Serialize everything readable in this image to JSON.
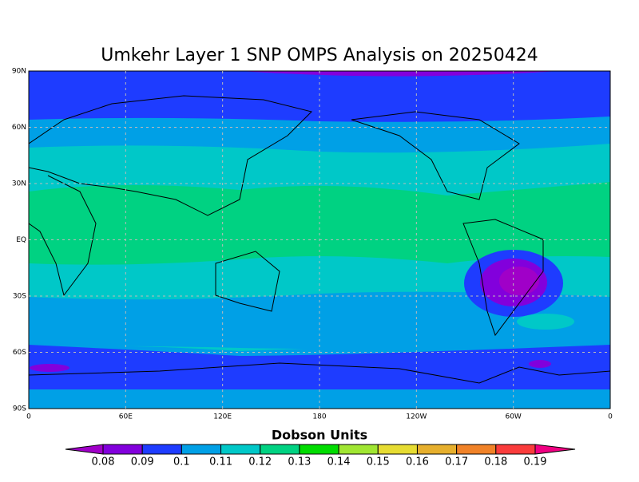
{
  "title": "Umkehr Layer 1 SNP OMPS Analysis on 20250424",
  "map": {
    "x_labels": [
      "0",
      "60E",
      "120E",
      "180",
      "120W",
      "60W",
      "0"
    ],
    "y_labels": [
      "90N",
      "60N",
      "30N",
      "EQ",
      "30S",
      "60S",
      "90S"
    ]
  },
  "colorbar": {
    "title": "Dobson Units",
    "levels": [
      0.08,
      0.09,
      0.1,
      0.11,
      0.12,
      0.13,
      0.14,
      0.15,
      0.16,
      0.17,
      0.18,
      0.19
    ],
    "colors": [
      "#a000c8",
      "#8200dc",
      "#1e3cff",
      "#00a0e6",
      "#00c8c8",
      "#00d282",
      "#00dc00",
      "#a0e632",
      "#e6dc32",
      "#e6af2d",
      "#f08228",
      "#fa3c3c",
      "#f00082"
    ]
  }
}
